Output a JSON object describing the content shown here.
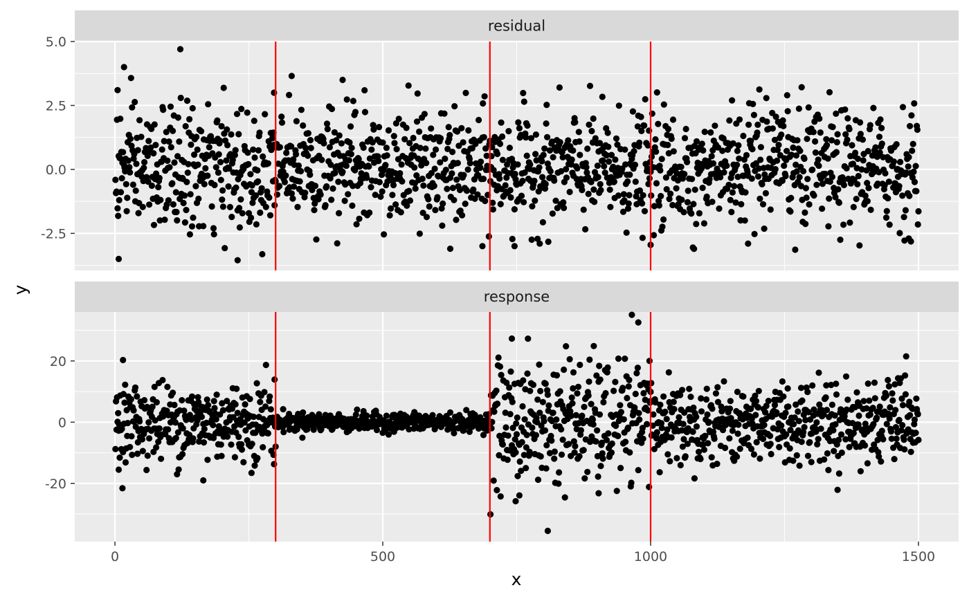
{
  "chart_data": {
    "type": "scatter",
    "xlabel": "x",
    "ylabel": "y",
    "xlim": [
      -75,
      1575
    ],
    "x_ticks": [
      0,
      500,
      1000,
      1500
    ],
    "x_tick_labels": [
      "0",
      "500",
      "1000",
      "1500"
    ],
    "changepoints": [
      300,
      700,
      1000
    ],
    "colors": {
      "panel_bg": "#EBEBEB",
      "grid": "#FFFFFF",
      "strip_bg": "#D9D9D9",
      "point": "#000000",
      "vline": "#FF0000"
    },
    "panels": [
      {
        "strip": "residual",
        "ylim": [
          -3.95,
          5.0
        ],
        "y_ticks": [
          -2.5,
          0,
          2.5,
          5
        ],
        "y_tick_labels": [
          "-2.5",
          "0.0",
          "2.5",
          "5.0"
        ],
        "n_points": 1500,
        "distribution": "standard normal noise around 0 (sd ≈ 1.15)",
        "segments": [
          {
            "x_range": [
              1,
              300
            ],
            "sd": 1.2
          },
          {
            "x_range": [
              301,
              700
            ],
            "sd": 1.1
          },
          {
            "x_range": [
              701,
              1000
            ],
            "sd": 1.1
          },
          {
            "x_range": [
              1001,
              1500
            ],
            "sd": 1.15
          }
        ],
        "notable_points": [
          {
            "x": 5,
            "y": 3.1
          },
          {
            "x": 7,
            "y": -3.5
          },
          {
            "x": 17,
            "y": 4.0
          },
          {
            "x": 122,
            "y": 4.7
          },
          {
            "x": 229,
            "y": -3.55
          },
          {
            "x": 297,
            "y": 3.0
          },
          {
            "x": 330,
            "y": 3.65
          },
          {
            "x": 425,
            "y": 3.5
          },
          {
            "x": 626,
            "y": -3.1
          },
          {
            "x": 686,
            "y": -3.0
          },
          {
            "x": 746,
            "y": -3.0
          },
          {
            "x": 1000,
            "y": -2.95
          },
          {
            "x": 1152,
            "y": 2.7
          },
          {
            "x": 1182,
            "y": -2.9
          },
          {
            "x": 1482,
            "y": -2.7
          }
        ]
      },
      {
        "strip": "response",
        "ylim": [
          -39,
          36
        ],
        "y_ticks": [
          -20,
          0,
          20
        ],
        "y_tick_labels": [
          "-20",
          "0",
          "20"
        ],
        "n_points": 1500,
        "distribution": "normal noise around 0 with segment-wise variance",
        "segments": [
          {
            "x_range": [
              1,
              300
            ],
            "sd": 6.5
          },
          {
            "x_range": [
              301,
              700
            ],
            "sd": 1.5
          },
          {
            "x_range": [
              701,
              1000
            ],
            "sd": 10.0
          },
          {
            "x_range": [
              1001,
              1500
            ],
            "sd": 6.5
          }
        ],
        "notable_points": [
          {
            "x": 15,
            "y": 20.3
          },
          {
            "x": 7,
            "y": -15.5
          },
          {
            "x": 165,
            "y": -19.0
          },
          {
            "x": 282,
            "y": 18.7
          },
          {
            "x": 741,
            "y": 27.3
          },
          {
            "x": 748,
            "y": -25.8
          },
          {
            "x": 755,
            "y": -23.9
          },
          {
            "x": 808,
            "y": -35.5
          },
          {
            "x": 842,
            "y": 24.8
          },
          {
            "x": 903,
            "y": -23.2
          },
          {
            "x": 977,
            "y": 32.6
          },
          {
            "x": 998,
            "y": 20.0
          }
        ]
      }
    ]
  }
}
